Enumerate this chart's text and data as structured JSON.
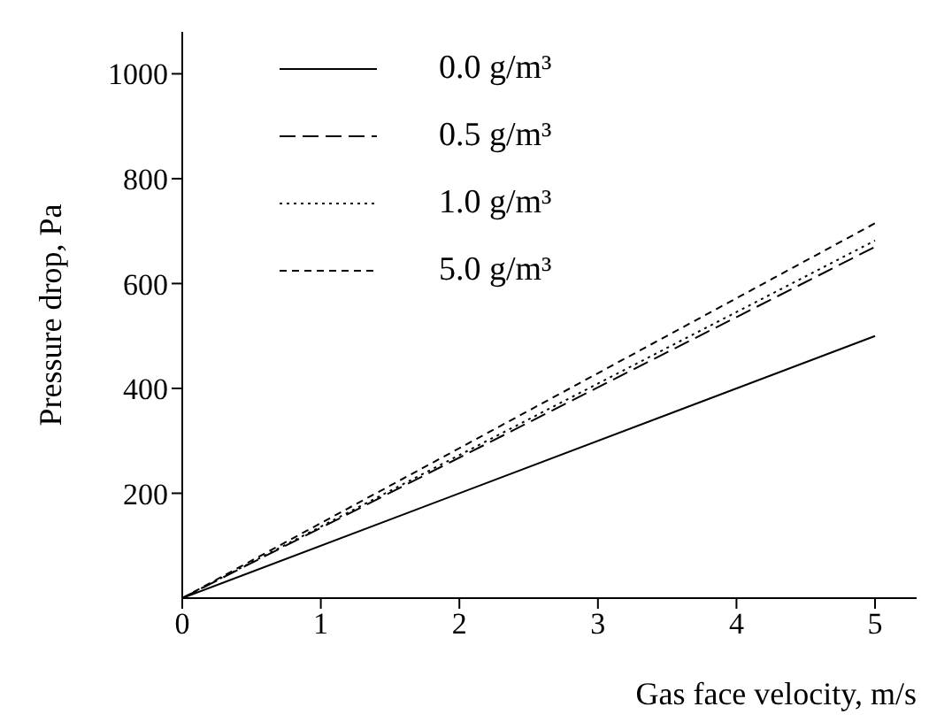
{
  "chart_data": {
    "type": "line",
    "xlabel": "Gas face velocity, m/s",
    "ylabel": "Pressure drop, Pa",
    "x": [
      0,
      5
    ],
    "series": [
      {
        "name": "0.0 g/m³",
        "color": "#000000",
        "values": [
          0,
          500
        ],
        "line_style": "solid"
      },
      {
        "name": "0.5 g/m³",
        "color": "#000000",
        "values": [
          0,
          670
        ],
        "line_style": "dashed"
      },
      {
        "name": "1.0 g/m³",
        "color": "#000000",
        "values": [
          0,
          682
        ],
        "line_style": "dotted"
      },
      {
        "name": "5.0 g/m³",
        "color": "#000000",
        "values": [
          0,
          715
        ],
        "line_style": "dashdot"
      }
    ],
    "xlim": [
      0,
      5.3
    ],
    "xticks": [
      0,
      1,
      2,
      3,
      4,
      5
    ],
    "ylim": [
      0,
      1080
    ],
    "yticks": [
      200,
      400,
      600,
      800,
      1000
    ],
    "grid": false,
    "legend": "top",
    "marker": "none"
  }
}
